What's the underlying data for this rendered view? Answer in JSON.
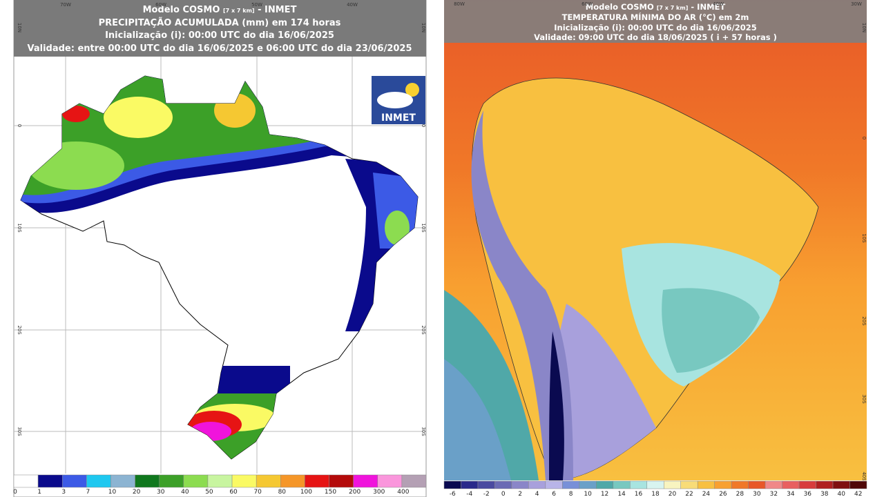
{
  "left_map": {
    "header": {
      "model": "Modelo COSMO",
      "resolution": "[7 x 7 km]",
      "source": "- INMET",
      "title": "PRECIPITAÇÃO ACUMULADA (mm) em 174 horas",
      "init": "Inicialização (i): 00:00 UTC do dia 16/06/2025",
      "validity": "Validade: entre 00:00 UTC do dia 16/06/2025 e 06:00 UTC do dia 23/06/2025"
    },
    "logo": "INMET",
    "lon_labels": [
      "70W",
      "60W",
      "50W",
      "40W"
    ],
    "lat_labels": [
      "10N",
      "0",
      "10S",
      "20S",
      "30S"
    ],
    "legend": [
      {
        "label": "0",
        "color": "#ffffff"
      },
      {
        "label": "1",
        "color": "#0a0a8c"
      },
      {
        "label": "3",
        "color": "#3c5ae6"
      },
      {
        "label": "7",
        "color": "#1ec8f0"
      },
      {
        "label": "10",
        "color": "#8cb4d2"
      },
      {
        "label": "20",
        "color": "#10781e"
      },
      {
        "label": "30",
        "color": "#3ca028"
      },
      {
        "label": "40",
        "color": "#8cdc50"
      },
      {
        "label": "50",
        "color": "#c8f5a0"
      },
      {
        "label": "60",
        "color": "#fafa64"
      },
      {
        "label": "70",
        "color": "#f5c832"
      },
      {
        "label": "80",
        "color": "#f59628"
      },
      {
        "label": "100",
        "color": "#e61414"
      },
      {
        "label": "150",
        "color": "#b40a0a"
      },
      {
        "label": "200",
        "color": "#f014dc"
      },
      {
        "label": "300",
        "color": "#fa96dc"
      },
      {
        "label": "400",
        "color": "#b4a0b4"
      }
    ]
  },
  "right_map": {
    "header": {
      "model": "Modelo COSMO",
      "resolution": "[7 x 7 km]",
      "source": "- INMET",
      "title": "TEMPERATURA MÍNIMA DO AR (°C) em 2m",
      "init": "Inicialização (i): 00:00 UTC do dia 16/06/2025",
      "validity": "Validade: 09:00 UTC do dia 18/06/2025 ( i + 57 horas )"
    },
    "lon_labels": [
      "80W",
      "60W",
      "40W",
      "30W"
    ],
    "lat_labels": [
      "10N",
      "0",
      "10S",
      "20S",
      "30S",
      "40S"
    ],
    "legend": [
      {
        "label": "-6",
        "color": "#0a0a50"
      },
      {
        "label": "-4",
        "color": "#2a2a8a"
      },
      {
        "label": "-2",
        "color": "#4a4aa0"
      },
      {
        "label": "0",
        "color": "#6a6ab4"
      },
      {
        "label": "2",
        "color": "#8a86c8"
      },
      {
        "label": "4",
        "color": "#a8a0dc"
      },
      {
        "label": "6",
        "color": "#b8b4e8"
      },
      {
        "label": "8",
        "color": "#7890d8"
      },
      {
        "label": "10",
        "color": "#6aa0c8"
      },
      {
        "label": "12",
        "color": "#50a8a8"
      },
      {
        "label": "14",
        "color": "#78c8c0"
      },
      {
        "label": "16",
        "color": "#a8e4e0"
      },
      {
        "label": "18",
        "color": "#d8f4f0"
      },
      {
        "label": "20",
        "color": "#f8f4c0"
      },
      {
        "label": "22",
        "color": "#f8dc78"
      },
      {
        "label": "24",
        "color": "#f8c040"
      },
      {
        "label": "26",
        "color": "#f8a030"
      },
      {
        "label": "28",
        "color": "#f07828"
      },
      {
        "label": "30",
        "color": "#e85828"
      },
      {
        "label": "32",
        "color": "#f08888"
      },
      {
        "label": "34",
        "color": "#e86060"
      },
      {
        "label": "36",
        "color": "#d83c3c"
      },
      {
        "label": "38",
        "color": "#b02020"
      },
      {
        "label": "40",
        "color": "#801010"
      },
      {
        "label": "42",
        "color": "#500808"
      }
    ]
  }
}
